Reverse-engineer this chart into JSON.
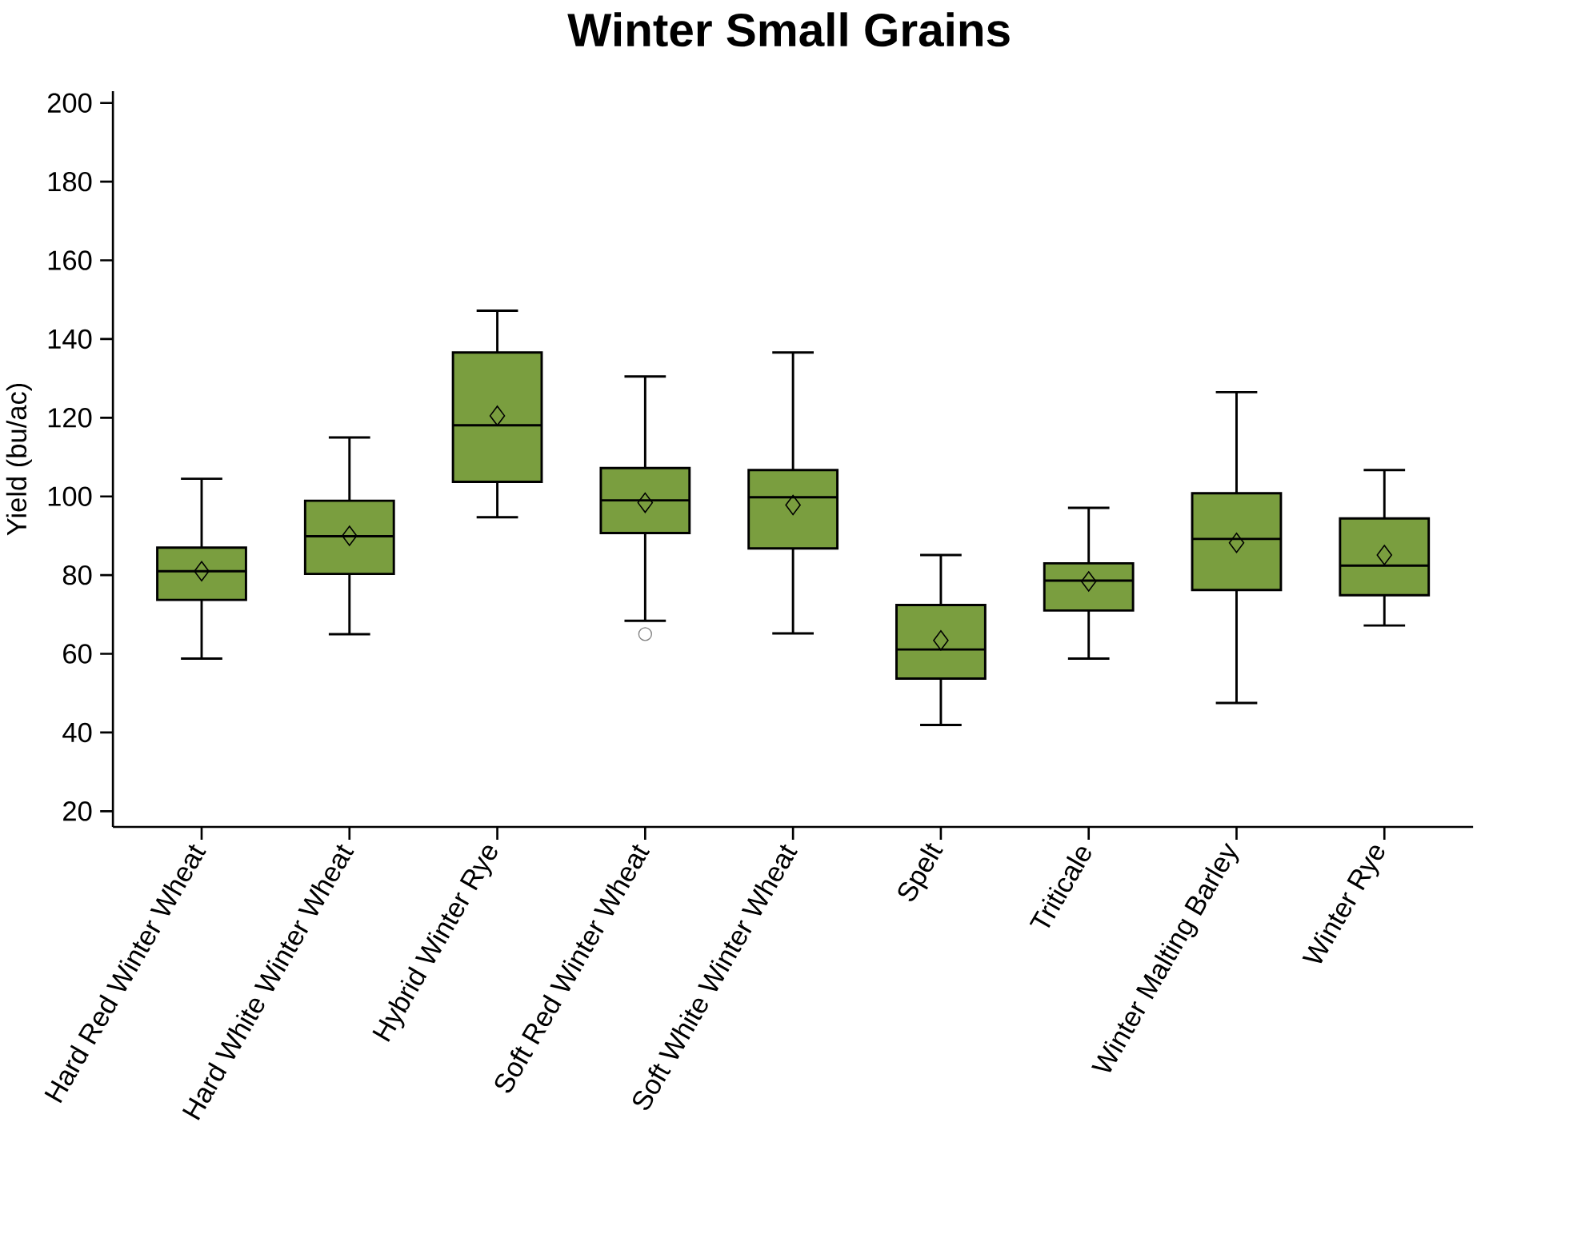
{
  "chart_data": {
    "type": "box",
    "title": "Winter Small Grains",
    "ylabel": "Yield (bu/ac)",
    "categories": [
      "Hard Red Winter Wheat",
      "Hard White Winter Wheat",
      "Hybrid Winter Rye",
      "Soft Red Winter Wheat",
      "Soft White Winter Wheat",
      "Spelt",
      "Triticale",
      "Winter Malting Barley",
      "Winter Rye"
    ],
    "color": "#7a9e3f",
    "boxes": [
      {
        "low": 58.8,
        "q1": 73.7,
        "median": 81,
        "q3": 87,
        "high": 104.5,
        "mean": 81
      },
      {
        "low": 65,
        "q1": 80.3,
        "median": 89.9,
        "q3": 98.9,
        "high": 115,
        "mean": 90
      },
      {
        "low": 94.7,
        "q1": 103.7,
        "median": 118.1,
        "q3": 136.6,
        "high": 147.2,
        "mean": 120.5
      },
      {
        "low": 68.4,
        "q1": 90.7,
        "median": 99,
        "q3": 107.2,
        "high": 130.5,
        "mean": 98.4,
        "outliers": [
          65
        ]
      },
      {
        "low": 65.2,
        "q1": 86.8,
        "median": 99.8,
        "q3": 106.7,
        "high": 136.6,
        "mean": 97.8
      },
      {
        "low": 41.9,
        "q1": 53.7,
        "median": 61.1,
        "q3": 72.4,
        "high": 85.1,
        "mean": 63.4
      },
      {
        "low": 58.8,
        "q1": 71,
        "median": 78.6,
        "q3": 83,
        "high": 97.1,
        "mean": 78.4
      },
      {
        "low": 47.5,
        "q1": 76.2,
        "median": 89.2,
        "q3": 100.8,
        "high": 126.5,
        "mean": 88.2
      },
      {
        "low": 67.2,
        "q1": 74.9,
        "median": 82.4,
        "q3": 94.4,
        "high": 106.7,
        "mean": 85.1
      }
    ],
    "ylim": [
      16,
      203
    ],
    "yticks": [
      20,
      40,
      60,
      80,
      100,
      120,
      140,
      160,
      180,
      200
    ]
  }
}
